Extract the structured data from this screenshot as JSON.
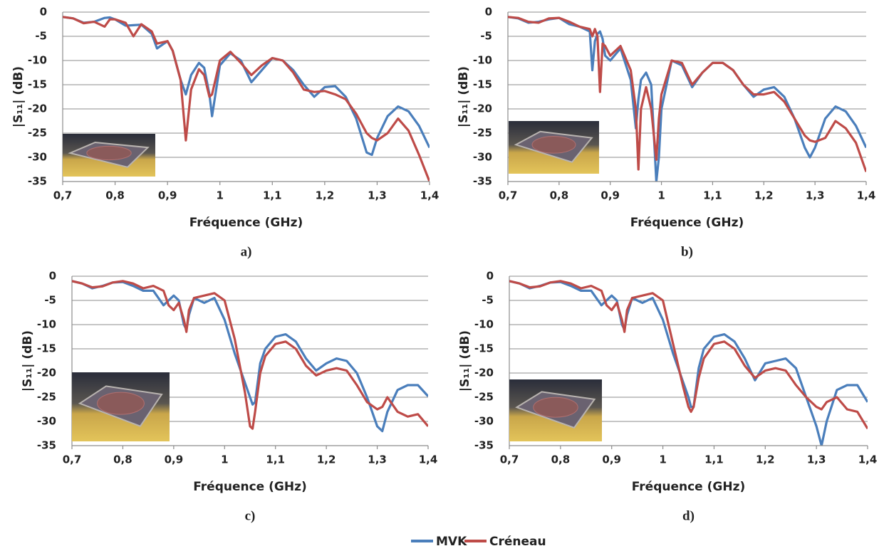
{
  "chart_data": [
    {
      "type": "line",
      "label": "a)",
      "xlabel": "Fréquence (GHz)",
      "ylabel": "|S₁₁| (dB)",
      "xlim": [
        0.7,
        1.4
      ],
      "ylim": [
        -35,
        0
      ],
      "grid": true,
      "xticks": [
        {
          "value": 0.7,
          "label": "0,7"
        },
        {
          "value": 0.8,
          "label": "0,8"
        },
        {
          "value": 0.9,
          "label": "0,9"
        },
        1,
        {
          "value": 1.1,
          "label": "1,1"
        },
        {
          "value": 1.2,
          "label": "1,2"
        },
        {
          "value": 1.3,
          "label": "1,3"
        },
        {
          "value": 1.4,
          "label": "1,4"
        }
      ],
      "yticks": [
        0,
        -5,
        -10,
        -15,
        -20,
        -25,
        -30,
        -35
      ],
      "x": [
        0.7,
        0.72,
        0.74,
        0.76,
        0.78,
        0.79,
        0.8,
        0.82,
        0.835,
        0.85,
        0.87,
        0.88,
        0.9,
        0.91,
        0.925,
        0.935,
        0.945,
        0.96,
        0.97,
        0.98,
        0.985,
        1.0,
        1.02,
        1.04,
        1.06,
        1.08,
        1.1,
        1.12,
        1.14,
        1.16,
        1.18,
        1.2,
        1.22,
        1.24,
        1.26,
        1.28,
        1.29,
        1.3,
        1.32,
        1.34,
        1.36,
        1.38,
        1.4
      ],
      "series": [
        {
          "name": "MVK",
          "color": "#4a7ebb",
          "values": [
            -1,
            -1.3,
            -2.2,
            -2,
            -1.2,
            -1.1,
            -1.5,
            -2.8,
            -2.7,
            -2.6,
            -4.5,
            -7.5,
            -6,
            -8,
            -14,
            -17,
            -13,
            -10.5,
            -11.5,
            -17,
            -21.5,
            -11,
            -8.5,
            -10,
            -14.5,
            -12,
            -9.5,
            -10,
            -12,
            -15,
            -17.5,
            -15.5,
            -15.3,
            -17.5,
            -22,
            -29,
            -29.5,
            -26,
            -21.5,
            -19.5,
            -20.5,
            -23.5,
            -28
          ]
        },
        {
          "name": "Créneau",
          "color": "#be4b48",
          "values": [
            -1,
            -1.3,
            -2.3,
            -2,
            -3,
            -1.5,
            -1.5,
            -2.2,
            -5,
            -2.5,
            -4,
            -6.5,
            -6,
            -8,
            -14,
            -26.5,
            -16,
            -11.8,
            -13,
            -17.5,
            -17,
            -10,
            -8.2,
            -10.5,
            -13,
            -11,
            -9.5,
            -10,
            -12.5,
            -16,
            -16.5,
            -16.3,
            -17,
            -18,
            -21,
            -25,
            -26,
            -26.5,
            -25,
            -22,
            -24.5,
            -29.5,
            -35
          ]
        }
      ]
    },
    {
      "type": "line",
      "label": "b)",
      "xlabel": "Fréquence (GHz)",
      "ylabel": "|S₁₁| (dB)",
      "xlim": [
        0.7,
        1.4
      ],
      "ylim": [
        -35,
        0
      ],
      "grid": true,
      "xticks": [
        {
          "value": 0.7,
          "label": "0,7"
        },
        {
          "value": 0.8,
          "label": "0,8"
        },
        {
          "value": 0.9,
          "label": "0,9"
        },
        1,
        {
          "value": 1.1,
          "label": "1,1"
        },
        {
          "value": 1.2,
          "label": "1,2"
        },
        {
          "value": 1.3,
          "label": "1,3"
        },
        {
          "value": 1.4,
          "label": "1,4"
        }
      ],
      "yticks": [
        0,
        -5,
        -10,
        -15,
        -20,
        -25,
        -30,
        -35
      ],
      "x": [
        0.7,
        0.72,
        0.74,
        0.76,
        0.78,
        0.8,
        0.82,
        0.84,
        0.86,
        0.865,
        0.87,
        0.875,
        0.88,
        0.885,
        0.89,
        0.9,
        0.92,
        0.94,
        0.95,
        0.955,
        0.96,
        0.97,
        0.98,
        0.99,
        0.995,
        1.0,
        1.02,
        1.04,
        1.06,
        1.08,
        1.1,
        1.12,
        1.14,
        1.16,
        1.18,
        1.2,
        1.22,
        1.24,
        1.26,
        1.28,
        1.29,
        1.3,
        1.32,
        1.34,
        1.36,
        1.38,
        1.4
      ],
      "series": [
        {
          "color": "#4a7ebb",
          "values": [
            -1,
            -1.3,
            -2.2,
            -2,
            -1.5,
            -1.2,
            -2.5,
            -3,
            -4,
            -12,
            -6,
            -4.5,
            -4,
            -5.5,
            -9,
            -10,
            -7.5,
            -14,
            -24,
            -18,
            -14,
            -12.5,
            -15,
            -35,
            -30,
            -20,
            -10,
            -11,
            -15.5,
            -12.5,
            -10.5,
            -10.5,
            -12,
            -15,
            -17.5,
            -16,
            -15.5,
            -17.5,
            -22,
            -28,
            -30,
            -28,
            -22,
            -19.5,
            -20.5,
            -23.5,
            -28
          ]
        },
        {
          "color": "#be4b48",
          "values": [
            -1,
            -1.2,
            -2,
            -2.2,
            -1.3,
            -1.2,
            -2,
            -3,
            -3.5,
            -5,
            -3.5,
            -5,
            -16.5,
            -6.5,
            -7,
            -9,
            -7,
            -12,
            -20,
            -32.5,
            -20,
            -15.5,
            -20,
            -30.5,
            -22,
            -17,
            -10,
            -10.5,
            -15,
            -12.5,
            -10.5,
            -10.5,
            -12,
            -15,
            -17,
            -17,
            -16.5,
            -18.5,
            -22,
            -25.5,
            -26.5,
            -26.8,
            -26,
            -22.5,
            -24,
            -27,
            -33
          ]
        }
      ]
    },
    {
      "type": "line",
      "label": "c)",
      "xlabel": "Fréquence (GHz)",
      "ylabel": "|S₁₁| (dB)",
      "xlim": [
        0.7,
        1.4
      ],
      "ylim": [
        -35,
        0
      ],
      "grid": true,
      "xticks": [
        {
          "value": 0.7,
          "label": "0,7"
        },
        {
          "value": 0.8,
          "label": "0,8"
        },
        {
          "value": 0.9,
          "label": "0,9"
        },
        1,
        {
          "value": 1.1,
          "label": "1,1"
        },
        {
          "value": 1.2,
          "label": "1,2"
        },
        {
          "value": 1.3,
          "label": "1,3"
        },
        {
          "value": 1.4,
          "label": "1,4"
        }
      ],
      "yticks": [
        0,
        -5,
        -10,
        -15,
        -20,
        -25,
        -30,
        -35
      ],
      "x": [
        0.7,
        0.72,
        0.74,
        0.76,
        0.78,
        0.8,
        0.82,
        0.84,
        0.86,
        0.88,
        0.89,
        0.9,
        0.91,
        0.92,
        0.925,
        0.93,
        0.94,
        0.96,
        0.98,
        1.0,
        1.02,
        1.04,
        1.05,
        1.055,
        1.06,
        1.07,
        1.08,
        1.1,
        1.12,
        1.14,
        1.16,
        1.18,
        1.2,
        1.22,
        1.24,
        1.26,
        1.28,
        1.3,
        1.31,
        1.32,
        1.34,
        1.36,
        1.38,
        1.4
      ],
      "series": [
        {
          "color": "#4a7ebb",
          "values": [
            -1,
            -1.5,
            -2.5,
            -2,
            -1.3,
            -1.2,
            -2,
            -3,
            -3,
            -6,
            -5,
            -4,
            -5,
            -10,
            -11,
            -8,
            -4.5,
            -5.5,
            -4.5,
            -9,
            -16,
            -22,
            -25,
            -26.5,
            -26,
            -18,
            -15,
            -12.5,
            -12,
            -13.5,
            -17,
            -19.5,
            -18,
            -17,
            -17.5,
            -20,
            -25,
            -31,
            -32,
            -28,
            -23.5,
            -22.5,
            -22.5,
            -24.8
          ]
        },
        {
          "color": "#be4b48",
          "values": [
            -1,
            -1.5,
            -2.3,
            -2.1,
            -1.3,
            -1,
            -1.5,
            -2.5,
            -2,
            -3,
            -6,
            -7,
            -5.5,
            -9,
            -11.5,
            -7,
            -4.5,
            -4,
            -3.5,
            -5,
            -13,
            -24,
            -31,
            -31.5,
            -28,
            -20,
            -16.5,
            -14,
            -13.5,
            -15,
            -18.5,
            -20.5,
            -19.5,
            -19,
            -19.5,
            -22.5,
            -26,
            -27.5,
            -27,
            -25,
            -28,
            -29,
            -28.5,
            -31
          ]
        }
      ]
    },
    {
      "type": "line",
      "label": "d)",
      "xlabel": "Fréquence (GHz)",
      "ylabel": "|S₁₁| (dB)",
      "xlim": [
        0.7,
        1.4
      ],
      "ylim": [
        -35,
        0
      ],
      "grid": true,
      "xticks": [
        {
          "value": 0.7,
          "label": "0,7"
        },
        {
          "value": 0.8,
          "label": "0,8"
        },
        {
          "value": 0.9,
          "label": "0,9"
        },
        1,
        {
          "value": 1.1,
          "label": "1,1"
        },
        {
          "value": 1.2,
          "label": "1,2"
        },
        {
          "value": 1.3,
          "label": "1,3"
        },
        {
          "value": 1.4,
          "label": "1,4"
        }
      ],
      "yticks": [
        0,
        -5,
        -10,
        -15,
        -20,
        -25,
        -30,
        -35
      ],
      "x": [
        0.7,
        0.72,
        0.74,
        0.76,
        0.78,
        0.8,
        0.82,
        0.84,
        0.86,
        0.88,
        0.89,
        0.9,
        0.91,
        0.92,
        0.925,
        0.93,
        0.94,
        0.96,
        0.98,
        1.0,
        1.02,
        1.04,
        1.05,
        1.055,
        1.06,
        1.07,
        1.08,
        1.1,
        1.12,
        1.14,
        1.16,
        1.18,
        1.2,
        1.22,
        1.24,
        1.26,
        1.28,
        1.3,
        1.31,
        1.32,
        1.34,
        1.36,
        1.38,
        1.4
      ],
      "series": [
        {
          "color": "#4a7ebb",
          "values": [
            -1,
            -1.5,
            -2.5,
            -2,
            -1.3,
            -1.2,
            -2,
            -3,
            -3,
            -6,
            -5,
            -4,
            -5,
            -10,
            -11,
            -8,
            -4.5,
            -5.5,
            -4.5,
            -9,
            -16,
            -22,
            -25,
            -27,
            -27,
            -19,
            -15,
            -12.5,
            -12,
            -13.5,
            -17,
            -21.5,
            -18,
            -17.5,
            -17,
            -19,
            -25,
            -31,
            -35,
            -30,
            -23.5,
            -22.5,
            -22.5,
            -26
          ]
        },
        {
          "color": "#be4b48",
          "values": [
            -1,
            -1.5,
            -2.3,
            -2.1,
            -1.3,
            -1,
            -1.5,
            -2.5,
            -2,
            -3,
            -6,
            -7,
            -5.5,
            -9,
            -11.5,
            -7,
            -4.5,
            -4,
            -3.5,
            -5,
            -14,
            -23,
            -27,
            -28,
            -27,
            -21,
            -17,
            -14,
            -13.5,
            -15,
            -18.5,
            -21,
            -19.5,
            -19,
            -19.5,
            -22.5,
            -25,
            -27,
            -27.5,
            -26,
            -25,
            -27.5,
            -28,
            -31.5
          ]
        }
      ]
    }
  ]
}
